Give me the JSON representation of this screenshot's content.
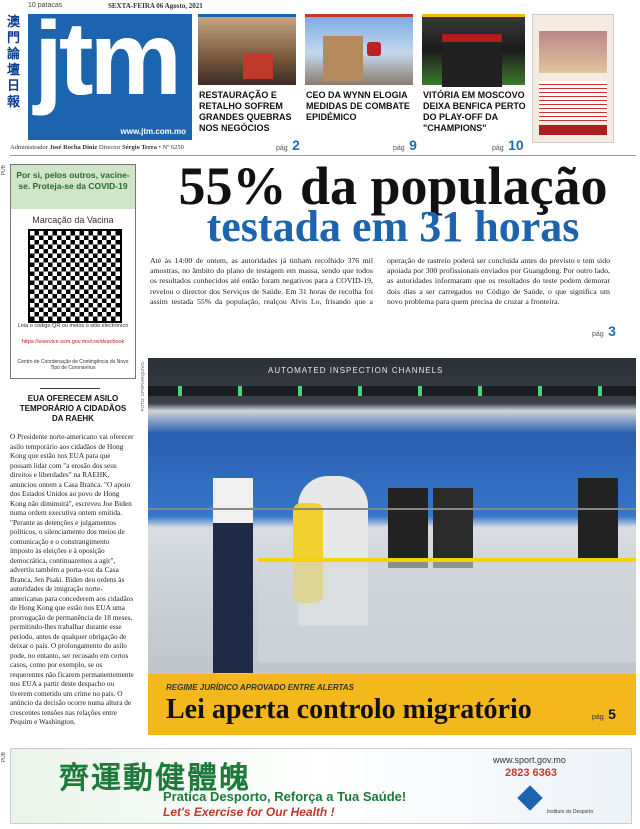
{
  "masthead": {
    "chinese_name": "澳門論壇日報",
    "logo": "jtm",
    "url": "www.jtm.com.mo",
    "price": "10 patacas",
    "date": "SEXTA-FEIRA 06 Agosto, 2021"
  },
  "teasers": [
    {
      "title": "RESTAURAÇÃO E RETALHO SOFREM GRANDES QUEBRAS NOS NEGÓCIOS",
      "page_label": "pág",
      "page": "2"
    },
    {
      "title": "CEO DA WYNN ELOGIA MEDIDAS DE COMBATE EPIDÉMICO",
      "page_label": "pág",
      "page": "9"
    },
    {
      "title": "VITÓRIA EM MOSCOVO DEIXA BENFICA PERTO DO PLAY-OFF DA \"CHAMPIONS\"",
      "page_label": "pág",
      "page": "10"
    }
  ],
  "staff": {
    "admin_label": "Administrador",
    "admin": "José Rocha Diniz",
    "director_label": "Director",
    "director": "Sérgio Terra",
    "number": "• Nº 6250"
  },
  "pub_label": "PUB",
  "vaccine_box": {
    "slogan": "Por si, pelos outros, vacine-se. Proteja-se da COVID-19",
    "title": "Marcação da Vacina",
    "instruction": "Leia o código QR ou meios o sitio electrónico",
    "link": "https://eservice.ssm.gov.mo/covidvacbook",
    "footer": "Centro de Coordenação de Contingência do Novo Tipo de Coronavírus"
  },
  "side_story": {
    "title": "EUA OFERECEM ASILO TEMPORÁRIO A CIDADÃOS DA RAEHK",
    "body": "O Presidente norte-americano vai oferecer asilo temporário aos cidadãos de Hong Kong que estão nos EUA para que possam lidar com \"a erosão dos seus direitos e liberdades\" na RAEHK, anunciou ontem a Casa Branca. \"O apoio dos Estados Unidos ao povo de Hong Kong não diminuirá\", escreveu Joe Biden numa ordem executiva ontem emitida. \"Perante as detenções e julgamentos políticos, o silenciamento dos meios de comunicação e o constrangimento imposto às eleições e à oposição democrática, continuaremos a agir\", advertiu também a porta-voz da Casa Branca, Jen Psaki. Biden deu ordens às autoridades de imigração norte-americanas para concederem aos cidadãos de Hong Kong que estão nos EUA uma prorrogação de permanência de 18 meses, permitindo-lhes trabalhar durante esse período, antes de qualquer obrigação de deixar o país. O prolongamento do asilo pode, no entanto, ser recusado em certos casos, como por exemplo, se os requerentes não ficarem permanentemente nos EUA a partir deste despacho ou tiverem cometido um crime no país. O anúncio da decisão ocorre numa altura de crescentes tensões nas relações entre Pequim e Washington."
  },
  "main_story": {
    "headline_1": "55% da população",
    "headline_2": "testada em 31 horas",
    "body": "Até às 14:00 de ontem, as autoridades já tinham recolhido 376 mil amostras, no âmbito do plano de testagem em massa, sendo que todos os resultados conhecidos até então foram negativos para a COVID-19, revelou o director dos Serviços de Saúde. Em 31 horas de recolha foi assim testada 55% da população, realçou Alvis Lo, frisando que a operação de rastreio poderá ser concluída antes do previsto e tem sido apoiada por 300 profissionais enviados por Guangdong. Por outro lado, as autoridades informaram que os resultados do teste podem demorar dois dias a ser carregados no Código de Saúde, o que significa um novo problema para quem precisa de cruzar a fronteira.",
    "page_label": "pág",
    "page": "3"
  },
  "photo": {
    "credit": "FOTO: CPSP/ARQUIVO",
    "sign": "AUTOMATED INSPECTION CHANNELS"
  },
  "banner": {
    "kicker": "REGIME JURÍDICO APROVADO ENTRE ALERTAS",
    "headline": "Lei aperta controlo migratório",
    "page_label": "pág",
    "page": "5"
  },
  "bottom_ad": {
    "chinese": "齊運動健體魄",
    "line_pt": "Pratica Desporto, Reforça a Tua Saúde!",
    "line_en": "Let's Exercise for Our Health !",
    "url": "www.sport.gov.mo",
    "phone": "2823 6363",
    "org": "Instituto do Desporto"
  }
}
